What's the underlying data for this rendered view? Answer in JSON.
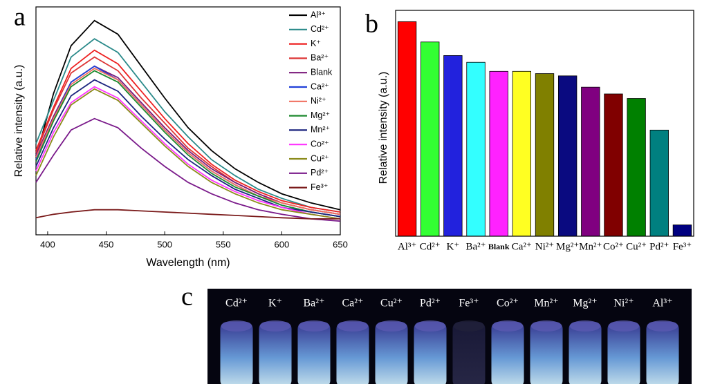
{
  "chart_data": [
    {
      "type": "line",
      "label": "a",
      "xlabel": "Wavelength (nm)",
      "ylabel": "Relative intensity (a.u.)",
      "x": [
        390,
        405,
        420,
        440,
        460,
        480,
        500,
        520,
        540,
        560,
        580,
        600,
        625,
        650
      ],
      "xlim": [
        390,
        650
      ],
      "xticks": [
        400,
        450,
        500,
        550,
        600,
        650
      ],
      "ylim": [
        0,
        100
      ],
      "legend": "upper right",
      "series": [
        {
          "name": "Al³⁺",
          "color": "#000000",
          "values": [
            34,
            62,
            83,
            94,
            88,
            74,
            60,
            47,
            37,
            29,
            23,
            18,
            14,
            11
          ]
        },
        {
          "name": "Cd²⁺",
          "color": "#2a8a8a",
          "values": [
            40,
            59,
            78,
            86,
            80,
            67,
            54,
            43,
            33,
            26,
            20,
            16,
            12,
            10
          ]
        },
        {
          "name": "K⁺",
          "color": "#ee2020",
          "values": [
            37,
            56,
            73,
            81,
            75,
            63,
            51,
            40,
            31,
            24,
            19,
            15,
            12,
            10
          ]
        },
        {
          "name": "Ba²⁺",
          "color": "#dd3535",
          "values": [
            36,
            55,
            71,
            78,
            72,
            60,
            49,
            38,
            30,
            23,
            18,
            14,
            11,
            9
          ]
        },
        {
          "name": "Blank",
          "color": "#7b1a7b",
          "values": [
            35,
            52,
            67,
            74,
            69,
            58,
            47,
            37,
            29,
            23,
            18,
            14,
            11,
            9
          ]
        },
        {
          "name": "Ca²⁺",
          "color": "#1f3fd8",
          "values": [
            33,
            51,
            67,
            74,
            68,
            57,
            46,
            36,
            28,
            22,
            17,
            13,
            10,
            8
          ]
        },
        {
          "name": "Ni²⁺",
          "color": "#f07060",
          "values": [
            34,
            51,
            66,
            73,
            68,
            57,
            46,
            36,
            28,
            22,
            17,
            14,
            11,
            9
          ]
        },
        {
          "name": "Mg²⁺",
          "color": "#1d8a2e",
          "values": [
            32,
            50,
            65,
            72,
            67,
            56,
            45,
            35,
            27,
            21,
            17,
            13,
            10,
            8
          ]
        },
        {
          "name": "Mn²⁺",
          "color": "#1a237e",
          "values": [
            30,
            47,
            61,
            68,
            63,
            52,
            42,
            33,
            26,
            20,
            16,
            12,
            10,
            8
          ]
        },
        {
          "name": "Co²⁺",
          "color": "#ff33ff",
          "values": [
            28,
            45,
            58,
            65,
            60,
            50,
            40,
            31,
            24,
            19,
            15,
            12,
            9,
            7
          ]
        },
        {
          "name": "Cu²⁺",
          "color": "#8a8a1a",
          "values": [
            26,
            43,
            57,
            64,
            59,
            49,
            39,
            30,
            23,
            18,
            14,
            11,
            9,
            7
          ]
        },
        {
          "name": "Pd²⁺",
          "color": "#7a1a8a",
          "values": [
            23,
            35,
            46,
            51,
            47,
            38,
            30,
            23,
            18,
            14,
            11,
            9,
            7,
            6
          ]
        },
        {
          "name": "Fe³⁺",
          "color": "#7a1a1a",
          "values": [
            7.5,
            9,
            10,
            11,
            11,
            10.5,
            10,
            9.5,
            9,
            8.5,
            8,
            7.5,
            7,
            7
          ]
        }
      ]
    },
    {
      "type": "bar",
      "label": "b",
      "ylabel": "Relative intensity (a.u.)",
      "ylim": [
        0,
        100
      ],
      "categories": [
        "Al³⁺",
        "Cd²⁺",
        "K⁺",
        "Ba²⁺",
        "Blank",
        "Ca²⁺",
        "Ni²⁺",
        "Mg²⁺",
        "Mn²⁺",
        "Co²⁺",
        "Cu²⁺",
        "Pd²⁺",
        "Fe³⁺"
      ],
      "values": [
        95,
        86,
        80,
        77,
        73,
        73,
        72,
        71,
        66,
        63,
        61,
        47,
        5
      ],
      "colors": [
        "#ff0000",
        "#33ff33",
        "#2222dd",
        "#33ffff",
        "#ff22ff",
        "#ffff22",
        "#808000",
        "#0a0a80",
        "#800080",
        "#800000",
        "#008000",
        "#008080",
        "#000080"
      ]
    }
  ],
  "photo": {
    "label": "c",
    "vial_labels": [
      "Cd²⁺",
      "K⁺",
      "Ba²⁺",
      "Ca²⁺",
      "Cu²⁺",
      "Pd²⁺",
      "Fe³⁺",
      "Co²⁺",
      "Mn²⁺",
      "Mg²⁺",
      "Ni²⁺",
      "Al³⁺"
    ]
  }
}
